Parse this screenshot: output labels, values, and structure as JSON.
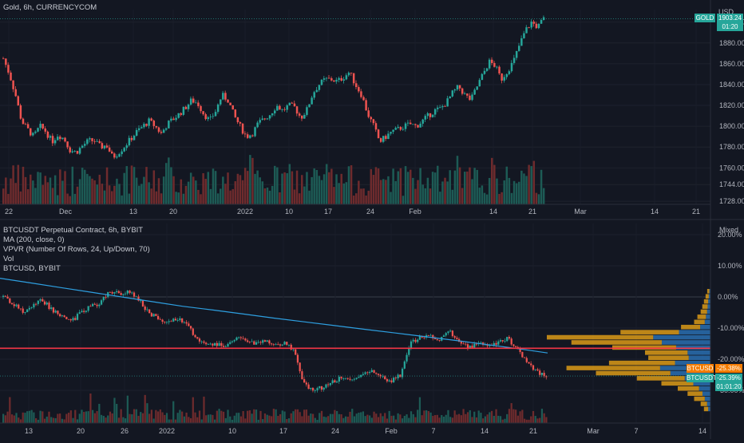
{
  "top_panel": {
    "title": "Gold, 6h, CURRENCYCOM",
    "currency": "USD",
    "price_tag": {
      "symbol": "GOLD",
      "price": "1903.24",
      "countdown": "01:20",
      "color": "#26a69a"
    },
    "y_ticks": [
      "1900.00",
      "1880.00",
      "1860.00",
      "1840.00",
      "1820.00",
      "1800.00",
      "1780.00",
      "1760.00",
      "1744.00",
      "1728.00"
    ],
    "x_ticks": [
      "22",
      "Dec",
      "13",
      "20",
      "2022",
      "10",
      "17",
      "24",
      "Feb",
      "14",
      "21",
      "Mar",
      "14",
      "21"
    ]
  },
  "bottom_panel": {
    "legend": [
      "BTCUSDT Perpetual Contract, 6h, BYBIT",
      "MA (200, close, 0)",
      "VPVR (Number Of Rows, 24, Up/Down, 70)",
      "Vol",
      "BTCUSD, BYBIT"
    ],
    "scale_mode": "Mixed",
    "y_ticks": [
      "20.00%",
      "10.00%",
      "0.00%",
      "-10.00%",
      "-20.00%",
      "-30.00%"
    ],
    "x_ticks": [
      "13",
      "20",
      "26",
      "2022",
      "10",
      "17",
      "24",
      "Feb",
      "7",
      "14",
      "21",
      "Mar",
      "7",
      "14"
    ],
    "tags": [
      {
        "symbol": "BTCUSD",
        "value": "-25.38%",
        "color": "#f57c00"
      },
      {
        "symbol": "BTCUSDT",
        "value": "-25.39%",
        "countdown": "01:01:20",
        "color": "#26a69a"
      }
    ]
  },
  "chart_data": [
    {
      "type": "candlestick",
      "title": "Gold, 6h, CURRENCYCOM",
      "ylabel": "USD",
      "ylim": [
        1725,
        1912
      ],
      "x_range": [
        "Nov 22",
        "Feb 23"
      ],
      "close_path": [
        1865,
        1850,
        1830,
        1805,
        1797,
        1790,
        1800,
        1795,
        1785,
        1792,
        1788,
        1777,
        1775,
        1781,
        1786,
        1786,
        1780,
        1782,
        1770,
        1775,
        1781,
        1788,
        1795,
        1800,
        1805,
        1800,
        1793,
        1802,
        1807,
        1812,
        1818,
        1825,
        1822,
        1812,
        1805,
        1815,
        1830,
        1825,
        1810,
        1800,
        1790,
        1793,
        1803,
        1807,
        1812,
        1820,
        1815,
        1820,
        1818,
        1808,
        1816,
        1832,
        1840,
        1845,
        1845,
        1843,
        1847,
        1852,
        1840,
        1830,
        1812,
        1800,
        1785,
        1790,
        1795,
        1797,
        1800,
        1802,
        1800,
        1805,
        1810,
        1815,
        1817,
        1823,
        1832,
        1838,
        1830,
        1825,
        1838,
        1850,
        1862,
        1858,
        1845,
        1853,
        1862,
        1878,
        1892,
        1900,
        1895,
        1903
      ],
      "volume_color_up": "#26a69a",
      "volume_color_down": "#ef5350"
    },
    {
      "type": "line",
      "title": "BTCUSDT Perpetual Contract, 6h, BYBIT",
      "ylim": [
        -33,
        22
      ],
      "y_unit": "%",
      "x_range": [
        "Dec 8",
        "Feb 23"
      ],
      "series": [
        {
          "name": "BTCUSDT Perpetual Contract, 6h, BYBIT",
          "type": "candlestick",
          "color": "#ef5350",
          "values": [
            0,
            -2,
            -5,
            -3,
            -1,
            -4,
            -6,
            -8,
            -5,
            -3,
            -2,
            2,
            1,
            2,
            -1,
            -5,
            -7,
            -8,
            -7,
            -9,
            -14,
            -16,
            -15,
            -16,
            -13,
            -14,
            -15,
            -14,
            -16,
            -15,
            -17,
            -28,
            -30,
            -29,
            -27,
            -26,
            -27,
            -25,
            -24,
            -26,
            -27,
            -25,
            -15,
            -13,
            -12,
            -14,
            -11,
            -15,
            -16,
            -15,
            -16,
            -15,
            -13,
            -17,
            -21,
            -24,
            -25.4
          ]
        },
        {
          "name": "MA (200, close, 0)",
          "type": "line",
          "color": "#2e9fe0",
          "values": [
            6,
            4.5,
            3,
            1.5,
            0,
            -1.5,
            -3,
            -4.2,
            -5.5,
            -6.8,
            -8,
            -9.2,
            -10.4,
            -11.6,
            -12.8,
            -14,
            -15.3,
            -16.6,
            -18
          ]
        },
        {
          "name": "BTCUSD, BYBIT",
          "type": "line",
          "color": "#f57c00",
          "values": [
            0,
            -2,
            -5,
            -3,
            -1,
            -4,
            -6,
            -8,
            -5,
            -3,
            -2,
            2,
            1,
            2,
            -1,
            -5,
            -7,
            -8,
            -7,
            -9,
            -14,
            -16,
            -15,
            -16,
            -13,
            -14,
            -15,
            -14,
            -16,
            -15,
            -17,
            -28,
            -30,
            -29,
            -27,
            -26,
            -27,
            -25,
            -24,
            -26,
            -27,
            -25,
            -15,
            -13,
            -12,
            -14,
            -11,
            -15,
            -16,
            -15,
            -16,
            -15,
            -13,
            -17,
            -21,
            -24,
            -25.38
          ]
        }
      ],
      "horizontal_lines": [
        {
          "value": -16.5,
          "color": "#f23645"
        }
      ],
      "vpvr_rows": [
        2,
        3,
        4,
        5,
        6,
        8,
        10,
        18,
        55,
        100,
        85,
        60,
        40,
        38,
        62,
        88,
        70,
        45,
        30,
        20,
        14,
        10,
        6,
        4
      ],
      "vpvr_colors": {
        "up": "#2a6fb0",
        "down": "#e8a317"
      }
    }
  ]
}
